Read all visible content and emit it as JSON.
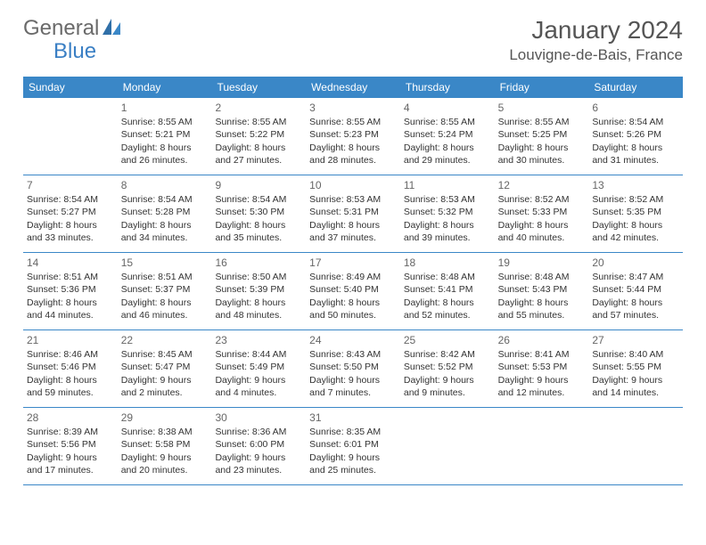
{
  "brand": {
    "text1": "General",
    "text2": "Blue"
  },
  "colors": {
    "brand_gray": "#6a6a6a",
    "brand_blue": "#3a7fc4",
    "header_bg": "#3a87c7",
    "text": "#333333",
    "muted": "#666666",
    "background": "#ffffff"
  },
  "title": "January 2024",
  "location": "Louvigne-de-Bais, France",
  "weekdays": [
    "Sunday",
    "Monday",
    "Tuesday",
    "Wednesday",
    "Thursday",
    "Friday",
    "Saturday"
  ],
  "weeks": [
    [
      {
        "day": "",
        "sunrise": "",
        "sunset": "",
        "daylight1": "",
        "daylight2": ""
      },
      {
        "day": "1",
        "sunrise": "Sunrise: 8:55 AM",
        "sunset": "Sunset: 5:21 PM",
        "daylight1": "Daylight: 8 hours",
        "daylight2": "and 26 minutes."
      },
      {
        "day": "2",
        "sunrise": "Sunrise: 8:55 AM",
        "sunset": "Sunset: 5:22 PM",
        "daylight1": "Daylight: 8 hours",
        "daylight2": "and 27 minutes."
      },
      {
        "day": "3",
        "sunrise": "Sunrise: 8:55 AM",
        "sunset": "Sunset: 5:23 PM",
        "daylight1": "Daylight: 8 hours",
        "daylight2": "and 28 minutes."
      },
      {
        "day": "4",
        "sunrise": "Sunrise: 8:55 AM",
        "sunset": "Sunset: 5:24 PM",
        "daylight1": "Daylight: 8 hours",
        "daylight2": "and 29 minutes."
      },
      {
        "day": "5",
        "sunrise": "Sunrise: 8:55 AM",
        "sunset": "Sunset: 5:25 PM",
        "daylight1": "Daylight: 8 hours",
        "daylight2": "and 30 minutes."
      },
      {
        "day": "6",
        "sunrise": "Sunrise: 8:54 AM",
        "sunset": "Sunset: 5:26 PM",
        "daylight1": "Daylight: 8 hours",
        "daylight2": "and 31 minutes."
      }
    ],
    [
      {
        "day": "7",
        "sunrise": "Sunrise: 8:54 AM",
        "sunset": "Sunset: 5:27 PM",
        "daylight1": "Daylight: 8 hours",
        "daylight2": "and 33 minutes."
      },
      {
        "day": "8",
        "sunrise": "Sunrise: 8:54 AM",
        "sunset": "Sunset: 5:28 PM",
        "daylight1": "Daylight: 8 hours",
        "daylight2": "and 34 minutes."
      },
      {
        "day": "9",
        "sunrise": "Sunrise: 8:54 AM",
        "sunset": "Sunset: 5:30 PM",
        "daylight1": "Daylight: 8 hours",
        "daylight2": "and 35 minutes."
      },
      {
        "day": "10",
        "sunrise": "Sunrise: 8:53 AM",
        "sunset": "Sunset: 5:31 PM",
        "daylight1": "Daylight: 8 hours",
        "daylight2": "and 37 minutes."
      },
      {
        "day": "11",
        "sunrise": "Sunrise: 8:53 AM",
        "sunset": "Sunset: 5:32 PM",
        "daylight1": "Daylight: 8 hours",
        "daylight2": "and 39 minutes."
      },
      {
        "day": "12",
        "sunrise": "Sunrise: 8:52 AM",
        "sunset": "Sunset: 5:33 PM",
        "daylight1": "Daylight: 8 hours",
        "daylight2": "and 40 minutes."
      },
      {
        "day": "13",
        "sunrise": "Sunrise: 8:52 AM",
        "sunset": "Sunset: 5:35 PM",
        "daylight1": "Daylight: 8 hours",
        "daylight2": "and 42 minutes."
      }
    ],
    [
      {
        "day": "14",
        "sunrise": "Sunrise: 8:51 AM",
        "sunset": "Sunset: 5:36 PM",
        "daylight1": "Daylight: 8 hours",
        "daylight2": "and 44 minutes."
      },
      {
        "day": "15",
        "sunrise": "Sunrise: 8:51 AM",
        "sunset": "Sunset: 5:37 PM",
        "daylight1": "Daylight: 8 hours",
        "daylight2": "and 46 minutes."
      },
      {
        "day": "16",
        "sunrise": "Sunrise: 8:50 AM",
        "sunset": "Sunset: 5:39 PM",
        "daylight1": "Daylight: 8 hours",
        "daylight2": "and 48 minutes."
      },
      {
        "day": "17",
        "sunrise": "Sunrise: 8:49 AM",
        "sunset": "Sunset: 5:40 PM",
        "daylight1": "Daylight: 8 hours",
        "daylight2": "and 50 minutes."
      },
      {
        "day": "18",
        "sunrise": "Sunrise: 8:48 AM",
        "sunset": "Sunset: 5:41 PM",
        "daylight1": "Daylight: 8 hours",
        "daylight2": "and 52 minutes."
      },
      {
        "day": "19",
        "sunrise": "Sunrise: 8:48 AM",
        "sunset": "Sunset: 5:43 PM",
        "daylight1": "Daylight: 8 hours",
        "daylight2": "and 55 minutes."
      },
      {
        "day": "20",
        "sunrise": "Sunrise: 8:47 AM",
        "sunset": "Sunset: 5:44 PM",
        "daylight1": "Daylight: 8 hours",
        "daylight2": "and 57 minutes."
      }
    ],
    [
      {
        "day": "21",
        "sunrise": "Sunrise: 8:46 AM",
        "sunset": "Sunset: 5:46 PM",
        "daylight1": "Daylight: 8 hours",
        "daylight2": "and 59 minutes."
      },
      {
        "day": "22",
        "sunrise": "Sunrise: 8:45 AM",
        "sunset": "Sunset: 5:47 PM",
        "daylight1": "Daylight: 9 hours",
        "daylight2": "and 2 minutes."
      },
      {
        "day": "23",
        "sunrise": "Sunrise: 8:44 AM",
        "sunset": "Sunset: 5:49 PM",
        "daylight1": "Daylight: 9 hours",
        "daylight2": "and 4 minutes."
      },
      {
        "day": "24",
        "sunrise": "Sunrise: 8:43 AM",
        "sunset": "Sunset: 5:50 PM",
        "daylight1": "Daylight: 9 hours",
        "daylight2": "and 7 minutes."
      },
      {
        "day": "25",
        "sunrise": "Sunrise: 8:42 AM",
        "sunset": "Sunset: 5:52 PM",
        "daylight1": "Daylight: 9 hours",
        "daylight2": "and 9 minutes."
      },
      {
        "day": "26",
        "sunrise": "Sunrise: 8:41 AM",
        "sunset": "Sunset: 5:53 PM",
        "daylight1": "Daylight: 9 hours",
        "daylight2": "and 12 minutes."
      },
      {
        "day": "27",
        "sunrise": "Sunrise: 8:40 AM",
        "sunset": "Sunset: 5:55 PM",
        "daylight1": "Daylight: 9 hours",
        "daylight2": "and 14 minutes."
      }
    ],
    [
      {
        "day": "28",
        "sunrise": "Sunrise: 8:39 AM",
        "sunset": "Sunset: 5:56 PM",
        "daylight1": "Daylight: 9 hours",
        "daylight2": "and 17 minutes."
      },
      {
        "day": "29",
        "sunrise": "Sunrise: 8:38 AM",
        "sunset": "Sunset: 5:58 PM",
        "daylight1": "Daylight: 9 hours",
        "daylight2": "and 20 minutes."
      },
      {
        "day": "30",
        "sunrise": "Sunrise: 8:36 AM",
        "sunset": "Sunset: 6:00 PM",
        "daylight1": "Daylight: 9 hours",
        "daylight2": "and 23 minutes."
      },
      {
        "day": "31",
        "sunrise": "Sunrise: 8:35 AM",
        "sunset": "Sunset: 6:01 PM",
        "daylight1": "Daylight: 9 hours",
        "daylight2": "and 25 minutes."
      },
      {
        "day": "",
        "sunrise": "",
        "sunset": "",
        "daylight1": "",
        "daylight2": ""
      },
      {
        "day": "",
        "sunrise": "",
        "sunset": "",
        "daylight1": "",
        "daylight2": ""
      },
      {
        "day": "",
        "sunrise": "",
        "sunset": "",
        "daylight1": "",
        "daylight2": ""
      }
    ]
  ]
}
